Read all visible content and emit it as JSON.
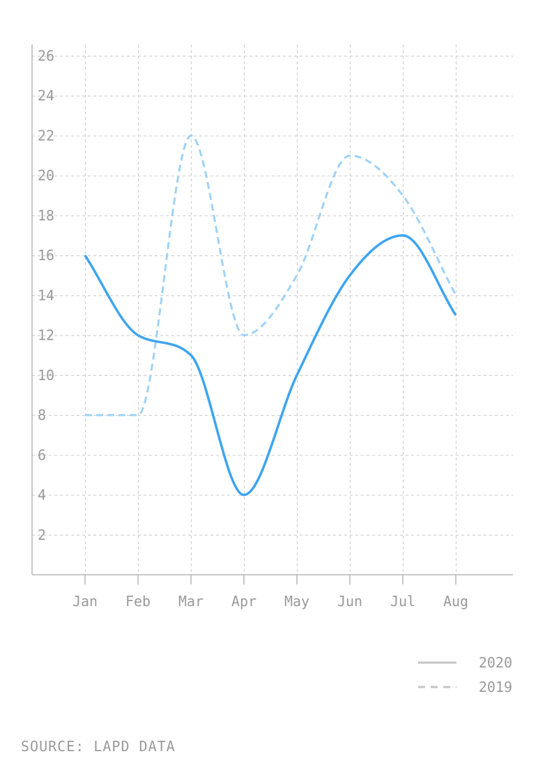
{
  "chart_data": {
    "type": "line",
    "categories": [
      "Jan",
      "Feb",
      "Mar",
      "Apr",
      "May",
      "Jun",
      "Jul",
      "Aug"
    ],
    "series": [
      {
        "name": "2020",
        "values": [
          16,
          12,
          11,
          4,
          10,
          15,
          17,
          13
        ],
        "color": "#3ea4f0",
        "style": "solid"
      },
      {
        "name": "2019",
        "values": [
          8,
          8,
          22,
          12,
          15,
          21,
          19,
          14
        ],
        "color": "#9fd2f7",
        "style": "dashed"
      }
    ],
    "yticks": [
      2,
      4,
      6,
      8,
      10,
      12,
      14,
      16,
      18,
      20,
      22,
      24,
      26
    ],
    "ylim": [
      0,
      26
    ],
    "grid": true,
    "legend_position": "bottom-right",
    "legend_color": "#c4c4c4"
  },
  "source": "SOURCE: LAPD DATA"
}
